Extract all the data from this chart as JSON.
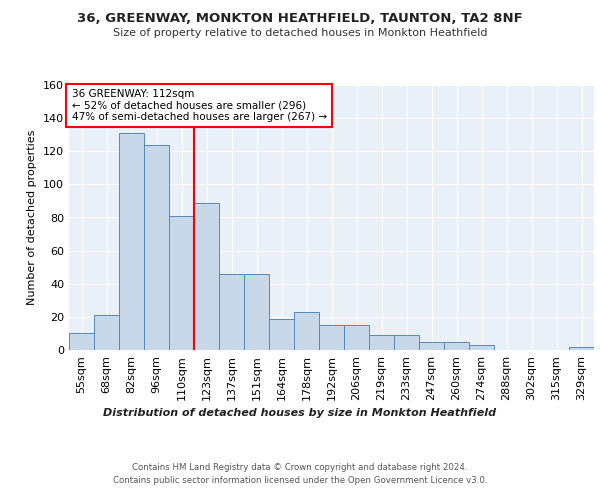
{
  "title": "36, GREENWAY, MONKTON HEATHFIELD, TAUNTON, TA2 8NF",
  "subtitle": "Size of property relative to detached houses in Monkton Heathfield",
  "xlabel": "Distribution of detached houses by size in Monkton Heathfield",
  "ylabel": "Number of detached properties",
  "categories": [
    "55sqm",
    "68sqm",
    "82sqm",
    "96sqm",
    "110sqm",
    "123sqm",
    "137sqm",
    "151sqm",
    "164sqm",
    "178sqm",
    "192sqm",
    "206sqm",
    "219sqm",
    "233sqm",
    "247sqm",
    "260sqm",
    "274sqm",
    "288sqm",
    "302sqm",
    "315sqm",
    "329sqm"
  ],
  "values": [
    10,
    21,
    131,
    124,
    81,
    89,
    46,
    46,
    19,
    23,
    15,
    15,
    9,
    9,
    5,
    5,
    3,
    0,
    0,
    0,
    2
  ],
  "bar_color": "#c8d8e8",
  "bar_edge_color": "#5588bb",
  "vline_x": 4.5,
  "vline_color": "red",
  "annotation_text": "36 GREENWAY: 112sqm\n← 52% of detached houses are smaller (296)\n47% of semi-detached houses are larger (267) →",
  "annotation_box_color": "white",
  "annotation_box_edge_color": "red",
  "ylim": [
    0,
    160
  ],
  "yticks": [
    0,
    20,
    40,
    60,
    80,
    100,
    120,
    140,
    160
  ],
  "background_color": "#eaf0f8",
  "footer_line1": "Contains HM Land Registry data © Crown copyright and database right 2024.",
  "footer_line2": "Contains public sector information licensed under the Open Government Licence v3.0."
}
